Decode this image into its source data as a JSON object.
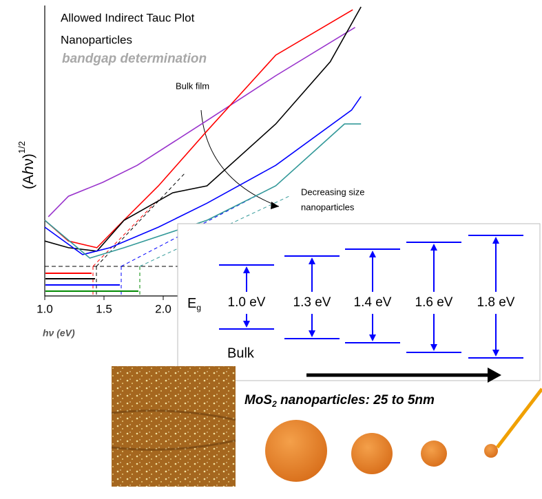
{
  "chart_data": {
    "type": "line",
    "title": "Allowed Indirect Tauc Plot",
    "subtitle": "Nanoparticles",
    "annotation": "bandgap determination",
    "annotations": [
      "Bulk film",
      "Decreasing size",
      "nanoparticles"
    ],
    "y_label": "(Aℎν)",
    "y_label_sup": "1/2",
    "x_label": "hν (eV)",
    "xlim": [
      1.0,
      3.7
    ],
    "ylim": [
      0,
      10
    ],
    "xticks": [
      {
        "value": 1,
        "label": "1.0"
      },
      {
        "value": 1.5,
        "label": "1.5"
      },
      {
        "value": 2,
        "label": "2.0"
      }
    ],
    "series": [
      {
        "color": "#9933cc",
        "x": [
          1.03,
          1.2,
          1.49,
          1.78,
          2.37,
          2.95,
          3.62
        ],
        "values": [
          2.74,
          3.45,
          3.93,
          4.52,
          6.07,
          7.62,
          9.29
        ]
      },
      {
        "color": "#ff0000",
        "x": [
          1.0,
          1.2,
          1.44,
          1.61,
          1.96,
          2.37,
          2.95,
          3.6
        ],
        "values": [
          2.62,
          1.9,
          1.67,
          2.38,
          3.81,
          5.71,
          8.33,
          9.9
        ]
      },
      {
        "color": "#000000",
        "x": [
          1.0,
          1.2,
          1.44,
          1.67,
          2.08,
          2.37,
          2.95,
          3.41,
          3.67
        ],
        "values": [
          1.9,
          1.67,
          1.55,
          2.62,
          3.57,
          3.81,
          5.95,
          8.1,
          10.0
        ]
      },
      {
        "color": "#0000ff",
        "x": [
          1.0,
          1.32,
          1.55,
          1.96,
          2.37,
          2.95,
          3.59,
          3.67
        ],
        "values": [
          2.38,
          1.43,
          1.67,
          2.38,
          3.21,
          4.52,
          6.43,
          6.9
        ]
      },
      {
        "color": "#339999",
        "x": [
          1.0,
          1.38,
          1.67,
          2.37,
          2.95,
          3.53,
          3.67
        ],
        "values": [
          2.62,
          1.31,
          1.67,
          2.62,
          3.81,
          5.95,
          5.95
        ]
      }
    ]
  },
  "diagram": {
    "eg": "E",
    "eg_sub": "g",
    "levels": [
      "1.0 eV",
      "1.3 eV",
      "1.4 eV",
      "1.6 eV",
      "1.8 eV"
    ],
    "bulk": "Bulk"
  },
  "caption": {
    "main": "MoS",
    "sub": "2",
    "rest": " nanoparticles: 25 to 5nm"
  }
}
